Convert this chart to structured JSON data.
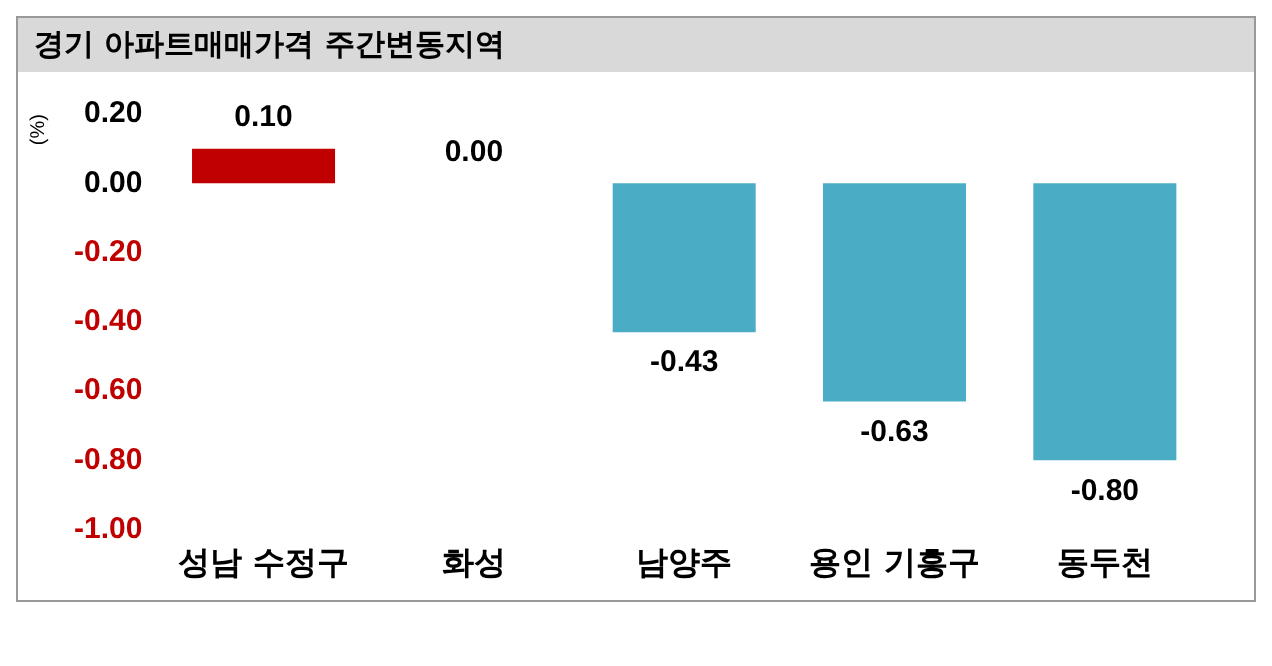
{
  "chart_data": {
    "type": "bar",
    "title": "경기 아파트매매가격 주간변동지역",
    "ylabel": "(%)",
    "categories": [
      "성남 수정구",
      "화성",
      "남양주",
      "용인 기흥구",
      "동두천"
    ],
    "values": [
      0.1,
      0.0,
      -0.43,
      -0.63,
      -0.8
    ],
    "colors": [
      "#c00000",
      "#4bacc6",
      "#4bacc6",
      "#4bacc6",
      "#4bacc6"
    ],
    "value_labels": [
      "0.10",
      "0.00",
      "-0.43",
      "-0.63",
      "-0.80"
    ],
    "ylim": [
      -1.0,
      0.2
    ],
    "yticks": [
      {
        "value": 0.2,
        "label": "0.20"
      },
      {
        "value": 0,
        "label": "0.00"
      },
      {
        "value": -0.2,
        "label": "-0.20"
      },
      {
        "value": -0.4,
        "label": "-0.40"
      },
      {
        "value": -0.6,
        "label": "-0.60"
      },
      {
        "value": -0.8,
        "label": "-0.80"
      },
      {
        "value": -1.0,
        "label": "-1.00"
      }
    ],
    "grid": false,
    "legend": false
  }
}
